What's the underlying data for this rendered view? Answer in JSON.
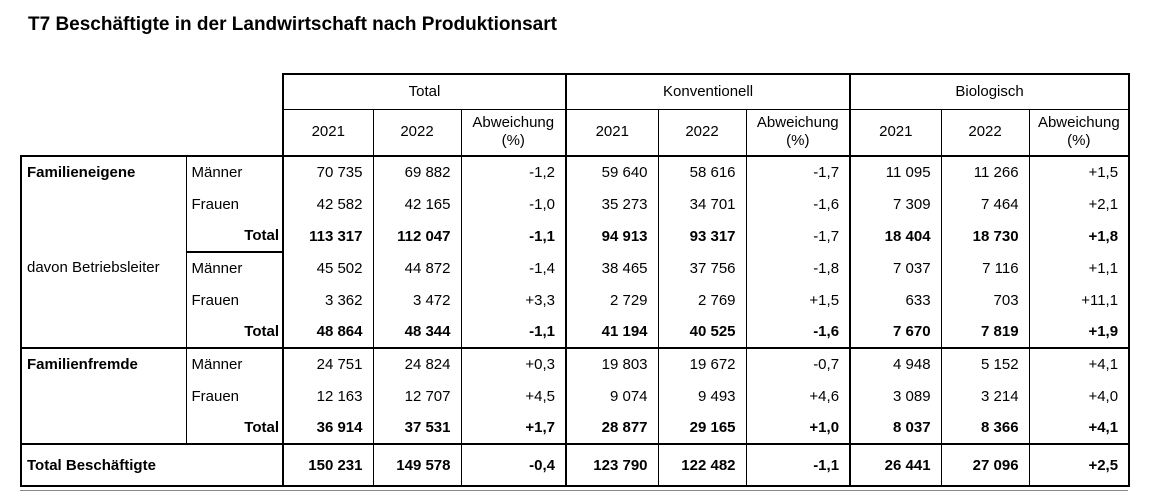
{
  "page_title": "T7 Beschäftigte in der Landwirtschaft nach Produktionsart",
  "table": {
    "column_groups": [
      "Total",
      "Konventionell",
      "Biologisch"
    ],
    "sub_headers": [
      "2021",
      "2022",
      "Abweichung (%)"
    ],
    "sections": [
      {
        "label": "Familieneigene",
        "label_bold": true,
        "rows": [
          {
            "sub": "Männer",
            "values": [
              "70 735",
              "69 882",
              "-1,2",
              "59 640",
              "58 616",
              "-1,7",
              "11 095",
              "11 266",
              "+1,5"
            ]
          },
          {
            "sub": "Frauen",
            "values": [
              "42 582",
              "42 165",
              "-1,0",
              "35 273",
              "34 701",
              "-1,6",
              "7 309",
              "7 464",
              "+2,1"
            ]
          },
          {
            "sub": "Total",
            "total": true,
            "regular_value_indices": [
              5
            ],
            "values": [
              "113 317",
              "112 047",
              "-1,1",
              "94 913",
              "93 317",
              "-1,7",
              "18 404",
              "18 730",
              "+1,8"
            ]
          }
        ]
      },
      {
        "label": "davon Betriebsleiter",
        "label_bold": false,
        "rows": [
          {
            "sub": "Männer",
            "values": [
              "45 502",
              "44 872",
              "-1,4",
              "38 465",
              "37 756",
              "-1,8",
              "7 037",
              "7 116",
              "+1,1"
            ]
          },
          {
            "sub": "Frauen",
            "values": [
              "3 362",
              "3 472",
              "+3,3",
              "2 729",
              "2 769",
              "+1,5",
              "633",
              "703",
              "+11,1"
            ]
          },
          {
            "sub": "Total",
            "total": true,
            "values": [
              "48 864",
              "48 344",
              "-1,1",
              "41 194",
              "40 525",
              "-1,6",
              "7 670",
              "7 819",
              "+1,9"
            ]
          }
        ]
      },
      {
        "label": "Familienfremde",
        "label_bold": true,
        "rows": [
          {
            "sub": "Männer",
            "values": [
              "24 751",
              "24 824",
              "+0,3",
              "19 803",
              "19 672",
              "-0,7",
              "4 948",
              "5 152",
              "+4,1"
            ]
          },
          {
            "sub": "Frauen",
            "values": [
              "12 163",
              "12 707",
              "+4,5",
              "9 074",
              "9 493",
              "+4,6",
              "3 089",
              "3 214",
              "+4,0"
            ]
          },
          {
            "sub": "Total",
            "total": true,
            "values": [
              "36 914",
              "37 531",
              "+1,7",
              "28 877",
              "29 165",
              "+1,0",
              "8 037",
              "8 366",
              "+4,1"
            ]
          }
        ]
      }
    ],
    "footer": {
      "label": "Total Beschäftigte",
      "values": [
        "150 231",
        "149 578",
        "-0,4",
        "123 790",
        "122 482",
        "-1,1",
        "26 441",
        "27 096",
        "+2,5"
      ]
    }
  }
}
